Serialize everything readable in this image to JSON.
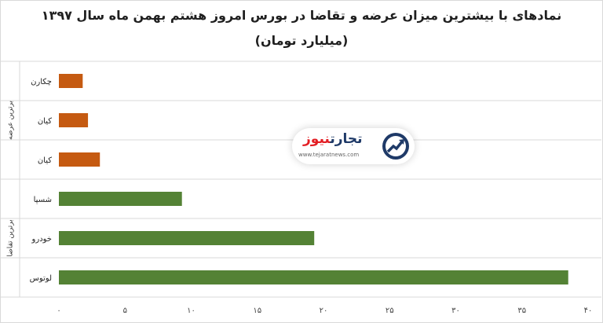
{
  "title_line1": "نمادهای با بیشترین میزان عرضه و تقاضا در بورس امروز هشتم بهمن ماه سال ۱۳۹۷",
  "title_line2": "(میلیارد تومان)",
  "watermark": {
    "brand_part1": "تجارت",
    "brand_part2": "نیوز",
    "url": "www.tejaratnews.com",
    "icon": "chart-arrow-logo-icon"
  },
  "colors": {
    "supply": "#c55a11",
    "demand": "#548235",
    "grid": "#d9d9d9",
    "logo_blue": "#1f3a68",
    "logo_red": "#e31e24"
  },
  "chart_data": {
    "type": "bar",
    "orientation": "horizontal",
    "title": "نمادهای با بیشترین میزان عرضه و تقاضا در بورس امروز هشتم بهمن ماه سال ۱۳۹۷ (میلیارد تومان)",
    "groups": [
      {
        "label": "برترین عرضه",
        "color": "#c55a11",
        "categories": [
          "چکارن",
          "کیان",
          "کیان"
        ],
        "values": [
          1.8,
          2.2,
          3.1
        ]
      },
      {
        "label": "برترین تقاضا",
        "color": "#548235",
        "categories": [
          "شسپا",
          "خودرو",
          "لوتوس"
        ],
        "values": [
          9.3,
          19.3,
          38.5
        ]
      }
    ],
    "x_ticks": [
      0,
      5,
      10,
      15,
      20,
      25,
      30,
      35,
      40
    ],
    "x_tick_labels": [
      "۰",
      "۵",
      "۱۰",
      "۱۵",
      "۲۰",
      "۲۵",
      "۳۰",
      "۳۵",
      "۴۰"
    ],
    "xlim": [
      0,
      40
    ],
    "grid": true,
    "legend": "none"
  }
}
